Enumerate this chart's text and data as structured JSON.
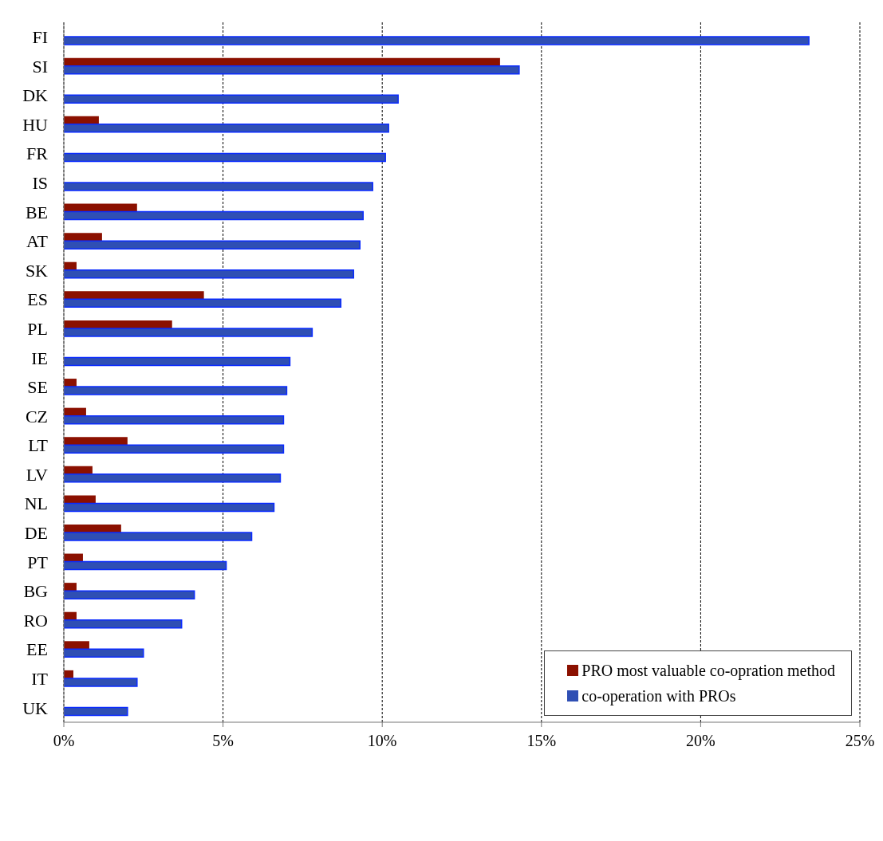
{
  "chart_data": {
    "type": "bar",
    "orientation": "horizontal",
    "categories": [
      "FI",
      "SI",
      "DK",
      "HU",
      "FR",
      "IS",
      "BE",
      "AT",
      "SK",
      "ES",
      "PL",
      "IE",
      "SE",
      "CZ",
      "LT",
      "LV",
      "NL",
      "DE",
      "PT",
      "BG",
      "RO",
      "EE",
      "IT",
      "UK"
    ],
    "series": [
      {
        "name": "PRO most valuable co-opration method",
        "color": "#8b1000",
        "values": [
          null,
          13.7,
          null,
          1.1,
          null,
          null,
          2.3,
          1.2,
          0.4,
          4.4,
          3.4,
          null,
          0.4,
          0.7,
          2.0,
          0.9,
          1.0,
          1.8,
          0.6,
          0.4,
          0.4,
          0.8,
          0.3,
          null
        ]
      },
      {
        "name": "co-operation with PROs",
        "color": "#2f4fb4",
        "values": [
          23.4,
          14.3,
          10.5,
          10.2,
          10.1,
          9.7,
          9.4,
          9.3,
          9.1,
          8.7,
          7.8,
          7.1,
          7.0,
          6.9,
          6.9,
          6.8,
          6.6,
          5.9,
          5.1,
          4.1,
          3.7,
          2.5,
          2.3,
          2.0
        ]
      }
    ],
    "xlim": [
      0,
      25
    ],
    "xticks": [
      {
        "value": 0,
        "label": "0%"
      },
      {
        "value": 5,
        "label": "5%"
      },
      {
        "value": 10,
        "label": "10%"
      },
      {
        "value": 15,
        "label": "15%"
      },
      {
        "value": 20,
        "label": "20%"
      },
      {
        "value": 25,
        "label": "25%"
      }
    ],
    "grid": "x",
    "legend": "bottom right"
  }
}
